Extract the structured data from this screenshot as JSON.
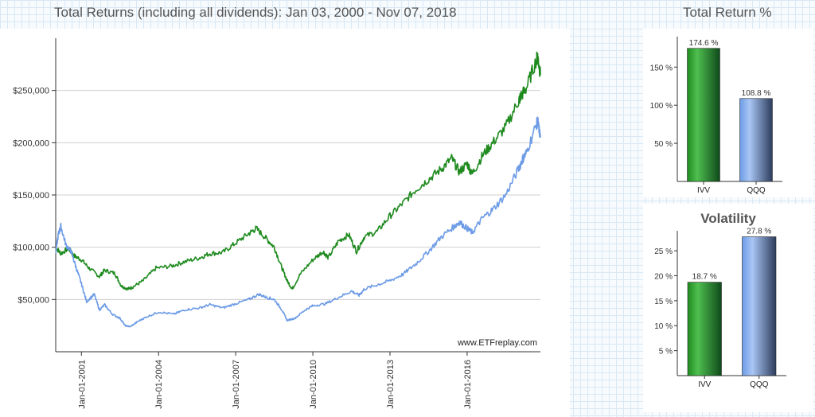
{
  "main_chart_title": "Total Returns (including all dividends): Jan 03, 2000 - Nov 07, 2018",
  "right_title": "Total Return %",
  "volatility_title": "Volatility",
  "colors": {
    "ivv": "#1e8a1e",
    "qqq": "#6d9be6",
    "axis": "#333333",
    "grid": "#cfcfcf",
    "title": "#555555"
  },
  "chart_data": [
    {
      "type": "line",
      "title": "Total Returns (including all dividends): Jan 03, 2000 - Nov 07, 2018",
      "xlabel": "",
      "ylabel": "",
      "xlim": [
        2000.0,
        2018.85
      ],
      "ylim": [
        0,
        300000
      ],
      "y_ticks": [
        50000,
        100000,
        150000,
        200000,
        250000
      ],
      "y_tick_labels": [
        "$50,000",
        "$100,000",
        "$150,000",
        "$200,000",
        "$250,000"
      ],
      "x_ticks": [
        2001.0,
        2004.0,
        2007.0,
        2010.0,
        2013.0,
        2016.0
      ],
      "x_tick_labels": [
        "Jan-01-2001",
        "Jan-01-2004",
        "Jan-01-2007",
        "Jan-01-2010",
        "Jan-01-2013",
        "Jan-01-2016"
      ],
      "grid": true,
      "watermark": "www.ETFreplay.com",
      "series": [
        {
          "name": "IVV",
          "color": "#1e8a1e",
          "x": [
            2000.0,
            2000.2,
            2000.5,
            2000.7,
            2001.0,
            2001.3,
            2001.7,
            2001.9,
            2002.3,
            2002.55,
            2002.8,
            2003.0,
            2003.4,
            2003.9,
            2004.5,
            2005.0,
            2005.6,
            2006.0,
            2006.5,
            2007.0,
            2007.5,
            2007.8,
            2008.2,
            2008.5,
            2008.8,
            2009.0,
            2009.2,
            2009.5,
            2010.0,
            2010.4,
            2010.6,
            2011.0,
            2011.4,
            2011.7,
            2012.0,
            2012.5,
            2013.0,
            2013.5,
            2014.0,
            2014.5,
            2015.0,
            2015.4,
            2015.7,
            2016.0,
            2016.2,
            2016.6,
            2017.0,
            2017.5,
            2018.0,
            2018.1,
            2018.3,
            2018.7,
            2018.75,
            2018.85
          ],
          "y": [
            100000,
            94000,
            99000,
            92000,
            88000,
            80000,
            72000,
            78000,
            75000,
            63000,
            60000,
            62000,
            68000,
            80000,
            82000,
            86000,
            90000,
            94000,
            95000,
            104000,
            113000,
            118000,
            108000,
            100000,
            80000,
            68000,
            60000,
            74000,
            88000,
            96000,
            90000,
            106000,
            112000,
            96000,
            110000,
            115000,
            130000,
            142000,
            155000,
            165000,
            175000,
            185000,
            172000,
            180000,
            170000,
            188000,
            200000,
            215000,
            240000,
            245000,
            252000,
            280000,
            282000,
            265000
          ]
        },
        {
          "name": "QQQ",
          "color": "#6d9be6",
          "x": [
            2000.0,
            2000.1,
            2000.2,
            2000.4,
            2000.6,
            2000.8,
            2001.0,
            2001.2,
            2001.5,
            2001.7,
            2001.9,
            2002.2,
            2002.5,
            2002.7,
            2002.9,
            2003.2,
            2003.5,
            2004.0,
            2004.6,
            2005.0,
            2005.6,
            2006.0,
            2006.5,
            2007.0,
            2007.5,
            2007.9,
            2008.2,
            2008.5,
            2008.8,
            2009.0,
            2009.3,
            2009.7,
            2010.0,
            2010.5,
            2011.0,
            2011.5,
            2011.8,
            2012.0,
            2012.5,
            2013.0,
            2013.5,
            2014.0,
            2014.5,
            2015.0,
            2015.5,
            2015.7,
            2016.0,
            2016.2,
            2016.6,
            2017.0,
            2017.5,
            2018.0,
            2018.15,
            2018.3,
            2018.7,
            2018.75,
            2018.85
          ],
          "y": [
            95000,
            112000,
            120000,
            102000,
            96000,
            80000,
            65000,
            48000,
            55000,
            40000,
            45000,
            36000,
            32000,
            25000,
            24000,
            29000,
            33000,
            38000,
            36000,
            40000,
            42000,
            45000,
            42000,
            46000,
            50000,
            55000,
            52000,
            50000,
            40000,
            30000,
            32000,
            40000,
            44000,
            46000,
            52000,
            58000,
            54000,
            60000,
            64000,
            68000,
            74000,
            84000,
            96000,
            110000,
            120000,
            124000,
            118000,
            114000,
            128000,
            136000,
            150000,
            175000,
            184000,
            190000,
            218000,
            220000,
            205000
          ]
        }
      ]
    },
    {
      "type": "bar",
      "title": "Total Return %",
      "categories": [
        "IVV",
        "QQQ"
      ],
      "values": [
        174.6,
        108.8
      ],
      "value_labels": [
        "174.6 %",
        "108.8 %"
      ],
      "colors": [
        "#1e8a1e",
        "#6d9be6"
      ],
      "ylim": [
        0,
        190
      ],
      "y_ticks": [
        50,
        100,
        150
      ],
      "y_tick_labels": [
        "50 %",
        "100 %",
        "150 %"
      ]
    },
    {
      "type": "bar",
      "title": "Volatility",
      "categories": [
        "IVV",
        "QQQ"
      ],
      "values": [
        18.7,
        27.8
      ],
      "value_labels": [
        "18.7 %",
        "27.8 %"
      ],
      "colors": [
        "#1e8a1e",
        "#6d9be6"
      ],
      "ylim": [
        0,
        29
      ],
      "y_ticks": [
        5,
        10,
        15,
        20,
        25
      ],
      "y_tick_labels": [
        "5 %",
        "10 %",
        "15 %",
        "20 %",
        "25 %"
      ]
    }
  ]
}
